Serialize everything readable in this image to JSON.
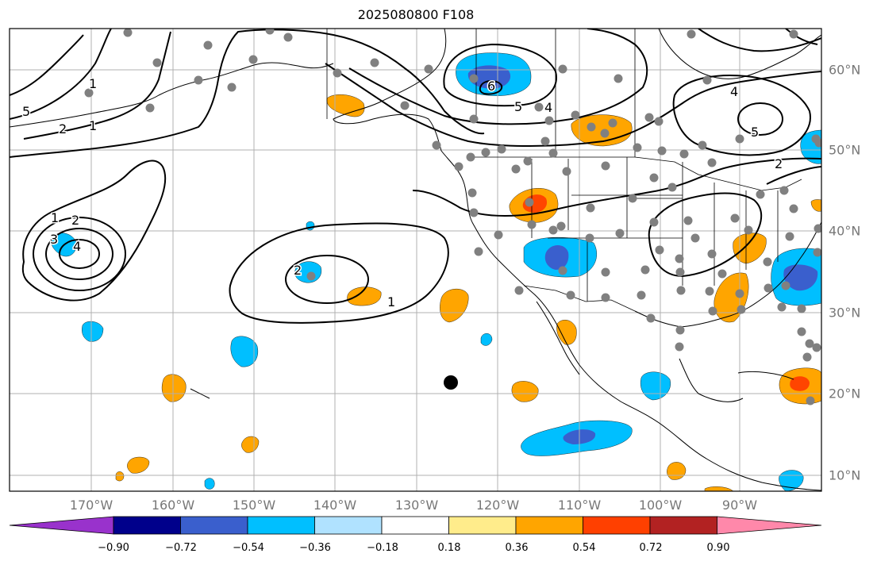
{
  "title": "2025080800 F108",
  "lon_labels": [
    "170°W",
    "160°W",
    "150°W",
    "140°W",
    "130°W",
    "120°W",
    "110°W",
    "100°W",
    "90°W"
  ],
  "lat_labels": [
    "60°N",
    "50°N",
    "40°N",
    "30°N",
    "20°N",
    "10°N"
  ],
  "colorbar": {
    "labels": [
      "−0.90",
      "−0.72",
      "−0.54",
      "−0.36",
      "−0.18",
      "0.18",
      "0.36",
      "0.54",
      "0.72",
      "0.90"
    ],
    "colors": [
      "#9932cc",
      "#00008b",
      "#3a5fcd",
      "#00bfff",
      "#b0e2ff",
      "#ffffff",
      "#ffec8b",
      "#ffa500",
      "#ff4000",
      "#b22222",
      "#ff88aa"
    ]
  },
  "contour_labels": [
    "1",
    "2",
    "3",
    "4",
    "5",
    "6",
    "1",
    "2",
    "4",
    "5",
    "4",
    "5",
    "2",
    "2",
    "1",
    "1"
  ],
  "colors": {
    "gridline": "#b0b0b0",
    "axis_text": "#777777",
    "station_dot": "#808080",
    "orange": "#ffa500",
    "red": "#ff4500",
    "light_blue": "#00bfff",
    "mid_blue": "#3a5fcd"
  }
}
